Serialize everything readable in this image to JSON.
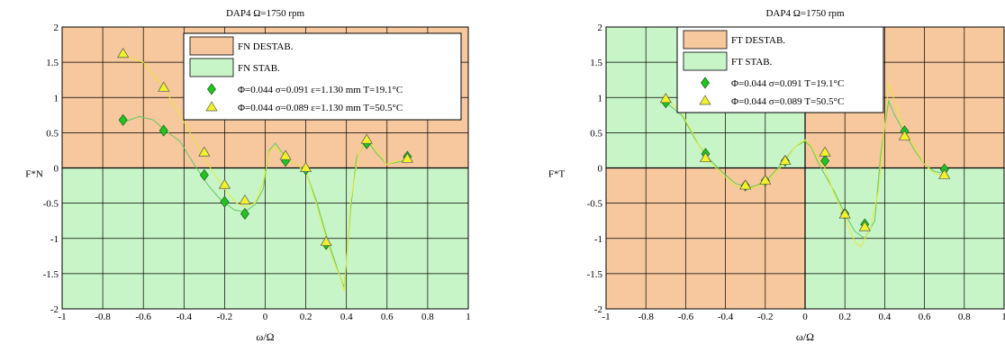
{
  "chart_data": [
    {
      "type": "scatter",
      "title": "DAP4 Ω=1750 rpm",
      "xlabel": "ω/Ω",
      "ylabel": "F*N",
      "xlim": [
        -1,
        1
      ],
      "ylim": [
        -2,
        2
      ],
      "xticks": [
        "-1",
        "-0.8",
        "-0.6",
        "-0.4",
        "-0.2",
        "0",
        "0.2",
        "0.4",
        "0.6",
        "0.8",
        "1"
      ],
      "yticks": [
        "-2",
        "-1.5",
        "-1",
        "-0.5",
        "0",
        "0.5",
        "1",
        "1.5",
        "2"
      ],
      "grid": true,
      "legend_position": "top-right",
      "regions": [
        {
          "name": "FN DESTAB.",
          "color": "#F7C79E",
          "x_range": [
            -1,
            1
          ],
          "y_range": [
            0,
            2
          ]
        },
        {
          "name": "FN STAB.",
          "color": "#C8F5C8",
          "x_range": [
            -1,
            1
          ],
          "y_range": [
            -2,
            0
          ]
        }
      ],
      "series": [
        {
          "name": "Φ=0.044 σ=0.091 ε=1.130 mm T=19.1°C",
          "marker": "diamond",
          "color": "#22C422",
          "x": [
            -0.7,
            -0.5,
            -0.3,
            -0.2,
            -0.1,
            0.1,
            0.2,
            0.3,
            0.5,
            0.7
          ],
          "y": [
            0.68,
            0.53,
            -0.1,
            -0.48,
            -0.65,
            0.1,
            -0.02,
            -1.08,
            0.35,
            0.16
          ]
        },
        {
          "name": "Φ=0.044 σ=0.089 ε=1.130 mm T=50.5°C",
          "marker": "triangle",
          "color": "#F2F22A",
          "x": [
            -0.7,
            -0.5,
            -0.3,
            -0.2,
            -0.1,
            0.1,
            0.2,
            0.3,
            0.5,
            0.7
          ],
          "y": [
            1.62,
            1.14,
            0.22,
            -0.24,
            -0.46,
            0.17,
            0.0,
            -1.05,
            0.4,
            0.13
          ]
        }
      ],
      "curves": [
        {
          "color": "#5FCB5F",
          "x": [
            -0.7,
            -0.62,
            -0.55,
            -0.5,
            -0.42,
            -0.35,
            -0.28,
            -0.22,
            -0.15,
            -0.1,
            -0.05,
            -0.01,
            0.02,
            0.05,
            0.1,
            0.15,
            0.2,
            0.25,
            0.3,
            0.34,
            0.37,
            0.39,
            0.42,
            0.45,
            0.5,
            0.55,
            0.6,
            0.65,
            0.7
          ],
          "y": [
            0.65,
            0.73,
            0.68,
            0.55,
            0.38,
            0.05,
            -0.25,
            -0.45,
            -0.6,
            -0.62,
            -0.52,
            -0.3,
            0.25,
            0.35,
            0.15,
            0.05,
            -0.05,
            -0.45,
            -0.95,
            -1.3,
            -1.55,
            -1.7,
            -0.6,
            0.15,
            0.4,
            0.2,
            0.05,
            0.08,
            0.12
          ]
        },
        {
          "color": "#E8E838",
          "x": [
            -0.7,
            -0.6,
            -0.5,
            -0.45,
            -0.4,
            -0.33,
            -0.27,
            -0.2,
            -0.14,
            -0.1,
            -0.05,
            -0.01,
            0.02,
            0.05,
            0.1,
            0.15,
            0.2,
            0.25,
            0.3,
            0.34,
            0.37,
            0.39,
            0.42,
            0.46,
            0.5,
            0.55,
            0.6,
            0.65,
            0.7
          ],
          "y": [
            1.6,
            1.5,
            1.15,
            0.9,
            0.65,
            0.3,
            0.0,
            -0.3,
            -0.5,
            -0.55,
            -0.5,
            -0.2,
            0.22,
            0.3,
            0.15,
            0.05,
            -0.05,
            -0.5,
            -1.0,
            -1.35,
            -1.55,
            -1.75,
            -0.5,
            0.2,
            0.42,
            0.25,
            0.05,
            0.1,
            0.12
          ]
        }
      ],
      "legend": {
        "destab": "FN DESTAB.",
        "stab": "FN STAB."
      }
    },
    {
      "type": "scatter",
      "title": "DAP4 Ω=1750 rpm",
      "xlabel": "ω/Ω",
      "ylabel": "F*T",
      "xlim": [
        -1,
        1
      ],
      "ylim": [
        -2,
        2
      ],
      "xticks": [
        "-1",
        "-0.8",
        "-0.6",
        "-0.4",
        "-0.2",
        "0",
        "0.2",
        "0.4",
        "0.6",
        "0.8",
        "1"
      ],
      "yticks": [
        "-2",
        "-1.5",
        "-1",
        "-0.5",
        "0",
        "0.5",
        "1",
        "1.5",
        "2"
      ],
      "grid": true,
      "legend_position": "top-right",
      "regions": [
        {
          "name": "FT DESTAB.",
          "color": "#F7C79E",
          "x_range": [
            0,
            1
          ],
          "y_range": [
            0,
            2
          ]
        },
        {
          "name": "FT DESTAB.",
          "color": "#F7C79E",
          "x_range": [
            -1,
            0
          ],
          "y_range": [
            -2,
            0
          ]
        },
        {
          "name": "FT STAB.",
          "color": "#C8F5C8",
          "x_range": [
            -1,
            0
          ],
          "y_range": [
            0,
            2
          ]
        },
        {
          "name": "FT STAB.",
          "color": "#C8F5C8",
          "x_range": [
            0,
            1
          ],
          "y_range": [
            -2,
            0
          ]
        }
      ],
      "series": [
        {
          "name": "Φ=0.044 σ=0.091 T=19.1°C",
          "marker": "diamond",
          "color": "#22C422",
          "x": [
            -0.7,
            -0.5,
            -0.3,
            -0.2,
            -0.1,
            0.1,
            0.2,
            0.3,
            0.5,
            0.7
          ],
          "y": [
            0.93,
            0.2,
            -0.25,
            -0.18,
            0.1,
            0.1,
            -0.65,
            -0.8,
            0.52,
            -0.02
          ]
        },
        {
          "name": "Φ=0.044 σ=0.089 T=50.5°C",
          "marker": "triangle",
          "color": "#F2F22A",
          "x": [
            -0.7,
            -0.5,
            -0.3,
            -0.2,
            -0.1,
            0.1,
            0.2,
            0.3,
            0.5,
            0.7
          ],
          "y": [
            0.98,
            0.14,
            -0.25,
            -0.18,
            0.1,
            0.22,
            -0.66,
            -0.84,
            0.45,
            -0.1
          ]
        }
      ],
      "curves": [
        {
          "color": "#5FCB5F",
          "x": [
            -0.7,
            -0.62,
            -0.55,
            -0.5,
            -0.42,
            -0.35,
            -0.28,
            -0.2,
            -0.12,
            -0.05,
            0.0,
            0.03,
            0.07,
            0.1,
            0.15,
            0.2,
            0.25,
            0.3,
            0.35,
            0.38,
            0.42,
            0.45,
            0.5,
            0.55,
            0.6,
            0.65,
            0.7
          ],
          "y": [
            0.93,
            0.75,
            0.4,
            0.18,
            -0.05,
            -0.22,
            -0.28,
            -0.2,
            0.05,
            0.3,
            0.38,
            0.3,
            0.05,
            -0.1,
            -0.35,
            -0.65,
            -0.9,
            -1.0,
            -0.75,
            0.2,
            0.95,
            0.75,
            0.5,
            0.25,
            0.05,
            -0.05,
            -0.08
          ]
        },
        {
          "color": "#E8E838",
          "x": [
            -0.7,
            -0.62,
            -0.55,
            -0.5,
            -0.42,
            -0.35,
            -0.28,
            -0.2,
            -0.12,
            -0.05,
            0.0,
            0.03,
            0.07,
            0.1,
            0.15,
            0.2,
            0.25,
            0.28,
            0.33,
            0.37,
            0.4,
            0.42,
            0.45,
            0.5,
            0.55,
            0.6,
            0.65,
            0.7
          ],
          "y": [
            1.0,
            0.78,
            0.42,
            0.15,
            -0.08,
            -0.25,
            -0.3,
            -0.22,
            0.02,
            0.3,
            0.4,
            0.32,
            0.1,
            0.0,
            -0.4,
            -0.7,
            -1.05,
            -1.12,
            -0.85,
            -0.3,
            0.6,
            1.2,
            0.95,
            0.55,
            0.3,
            0.05,
            -0.08,
            -0.12
          ]
        }
      ],
      "legend": {
        "destab": "FT DESTAB.",
        "stab": "FT STAB."
      }
    }
  ]
}
